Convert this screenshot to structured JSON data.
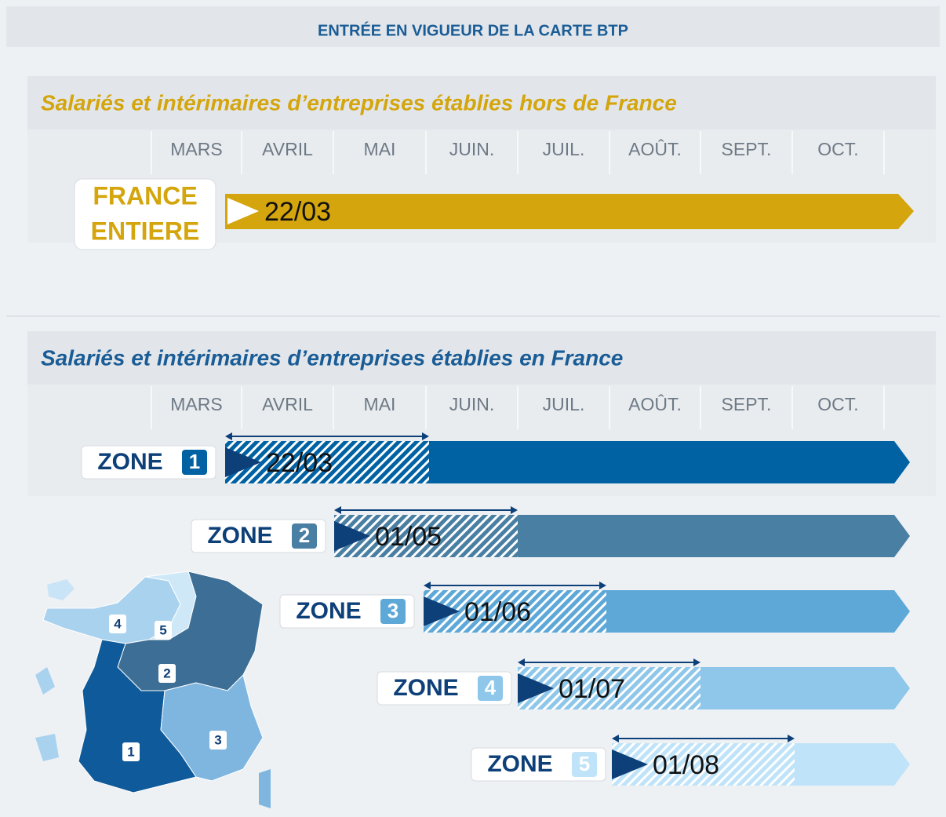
{
  "title": "ENTRÉE EN VIGUEUR DE LA CARTE BTP",
  "section_1": {
    "subtitle": "Salariés et intérimaires d’entreprises établies hors de France",
    "months": [
      "MARS",
      "AVRIL",
      "MAI",
      "JUIN.",
      "JUIL.",
      "AOÛT.",
      "SEPT.",
      "OCT."
    ],
    "label_lines": [
      "FRANCE",
      "ENTIERE"
    ],
    "date": "22/03"
  },
  "section_2": {
    "subtitle": "Salariés et intérimaires d’entreprises établies en France",
    "months": [
      "MARS",
      "AVRIL",
      "MAI",
      "JUIN.",
      "JUIL.",
      "AOÛT.",
      "SEPT.",
      "OCT."
    ],
    "zones": [
      {
        "label": "ZONE",
        "number": "1",
        "date": "22/03"
      },
      {
        "label": "ZONE",
        "number": "2",
        "date": "01/05"
      },
      {
        "label": "ZONE",
        "number": "3",
        "date": "01/06"
      },
      {
        "label": "ZONE",
        "number": "4",
        "date": "01/07"
      },
      {
        "label": "ZONE",
        "number": "5",
        "date": "01/08"
      }
    ]
  },
  "map": {
    "labels": [
      "4",
      "5",
      "2",
      "3",
      "1"
    ]
  }
}
